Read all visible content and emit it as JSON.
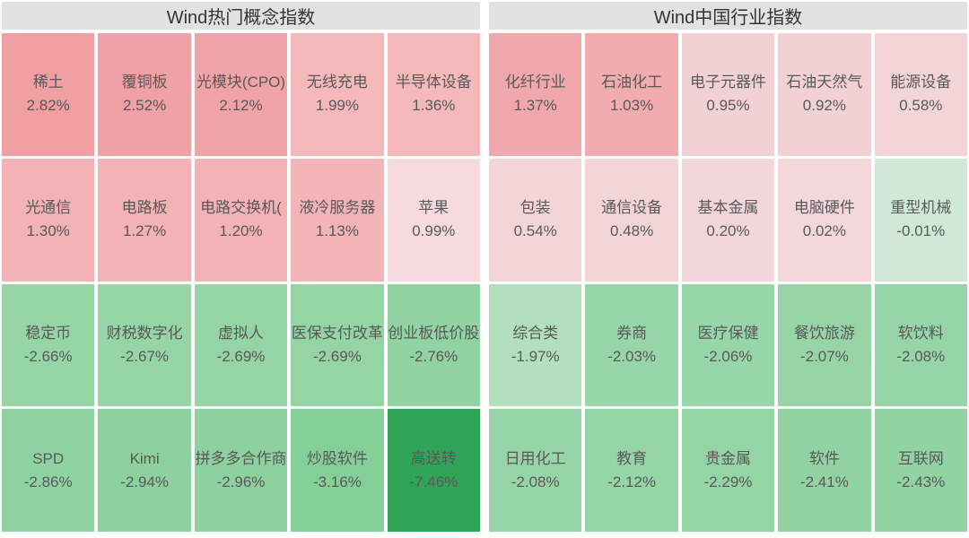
{
  "colors": {
    "background": "#ffffff",
    "header_bg": "#e2e2e2",
    "header_text": "#333333",
    "cell_text": "#595959",
    "max_up_red": "#f09fa3",
    "max_down_green": "#2fa456"
  },
  "chart_data": [
    {
      "type": "heatmap",
      "title": "Wind热门概念指数",
      "columns": 5,
      "rows": 4,
      "legend_position": "none",
      "cells": [
        {
          "label": "稀土",
          "value": 2.82,
          "display": "2.82%",
          "color": "#f09fa3"
        },
        {
          "label": "覆铜板",
          "value": 2.52,
          "display": "2.52%",
          "color": "#f0a1a5"
        },
        {
          "label": "光模块(CPO)",
          "value": 2.12,
          "display": "2.12%",
          "color": "#f1a4a8"
        },
        {
          "label": "无线充电",
          "value": 1.99,
          "display": "1.99%",
          "color": "#f5b8bb"
        },
        {
          "label": "半导体设备",
          "value": 1.36,
          "display": "1.36%",
          "color": "#f5b9bc"
        },
        {
          "label": "光通信",
          "value": 1.3,
          "display": "1.30%",
          "color": "#f3b2b5"
        },
        {
          "label": "电路板",
          "value": 1.27,
          "display": "1.27%",
          "color": "#f3b2b5"
        },
        {
          "label": "电路交换机(",
          "value": 1.2,
          "display": "1.20%",
          "color": "#f3b3b6"
        },
        {
          "label": "液冷服务器",
          "value": 1.13,
          "display": "1.13%",
          "color": "#f3b4b7"
        },
        {
          "label": "苹果",
          "value": 0.99,
          "display": "0.99%",
          "color": "#f6dade"
        },
        {
          "label": "稳定币",
          "value": -2.66,
          "display": "-2.66%",
          "color": "#95d5a6"
        },
        {
          "label": "财税数字化",
          "value": -2.67,
          "display": "-2.67%",
          "color": "#95d5a6"
        },
        {
          "label": "虚拟人",
          "value": -2.69,
          "display": "-2.69%",
          "color": "#94d4a5"
        },
        {
          "label": "医保支付改革",
          "value": -2.69,
          "display": "-2.69%",
          "color": "#94d4a5"
        },
        {
          "label": "创业板低价股",
          "value": -2.76,
          "display": "-2.76%",
          "color": "#91d3a3"
        },
        {
          "label": "SPD",
          "value": -2.86,
          "display": "-2.86%",
          "color": "#8fd2a1"
        },
        {
          "label": "Kimi",
          "value": -2.94,
          "display": "-2.94%",
          "color": "#8dd19f"
        },
        {
          "label": "拼多多合作商",
          "value": -2.96,
          "display": "-2.96%",
          "color": "#8dd19f"
        },
        {
          "label": "炒股软件",
          "value": -3.16,
          "display": "-3.16%",
          "color": "#85cf99"
        },
        {
          "label": "高送转",
          "value": -7.46,
          "display": "-7.46%",
          "color": "#2fa456"
        }
      ]
    },
    {
      "type": "heatmap",
      "title": "Wind中国行业指数",
      "columns": 5,
      "rows": 4,
      "legend_position": "none",
      "cells": [
        {
          "label": "化纤行业",
          "value": 1.37,
          "display": "1.37%",
          "color": "#f1a8ac"
        },
        {
          "label": "石油化工",
          "value": 1.03,
          "display": "1.03%",
          "color": "#f2acb0"
        },
        {
          "label": "电子元器件",
          "value": 0.95,
          "display": "0.95%",
          "color": "#f2d1d5"
        },
        {
          "label": "石油天然气",
          "value": 0.92,
          "display": "0.92%",
          "color": "#f2d1d5"
        },
        {
          "label": "能源设备",
          "value": 0.58,
          "display": "0.58%",
          "color": "#f3d4d7"
        },
        {
          "label": "包装",
          "value": 0.54,
          "display": "0.54%",
          "color": "#f3d4d7"
        },
        {
          "label": "通信设备",
          "value": 0.48,
          "display": "0.48%",
          "color": "#f3d5d8"
        },
        {
          "label": "基本金属",
          "value": 0.2,
          "display": "0.20%",
          "color": "#f3d6d9"
        },
        {
          "label": "电脑硬件",
          "value": 0.02,
          "display": "0.02%",
          "color": "#f3d7da"
        },
        {
          "label": "重型机械",
          "value": -0.01,
          "display": "-0.01%",
          "color": "#cfe9d6"
        },
        {
          "label": "综合类",
          "value": -1.97,
          "display": "-1.97%",
          "color": "#b2dfbd"
        },
        {
          "label": "券商",
          "value": -2.03,
          "display": "-2.03%",
          "color": "#97d6a8"
        },
        {
          "label": "医疗保健",
          "value": -2.06,
          "display": "-2.06%",
          "color": "#97d6a8"
        },
        {
          "label": "餐饮旅游",
          "value": -2.07,
          "display": "-2.07%",
          "color": "#97d5a7"
        },
        {
          "label": "软饮料",
          "value": -2.08,
          "display": "-2.08%",
          "color": "#96d5a7"
        },
        {
          "label": "日用化工",
          "value": -2.08,
          "display": "-2.08%",
          "color": "#96d5a7"
        },
        {
          "label": "教育",
          "value": -2.12,
          "display": "-2.12%",
          "color": "#96d5a6"
        },
        {
          "label": "贵金属",
          "value": -2.29,
          "display": "-2.29%",
          "color": "#94d4a5"
        },
        {
          "label": "软件",
          "value": -2.41,
          "display": "-2.41%",
          "color": "#92d3a3"
        },
        {
          "label": "互联网",
          "value": -2.43,
          "display": "-2.43%",
          "color": "#92d3a3"
        }
      ]
    }
  ]
}
